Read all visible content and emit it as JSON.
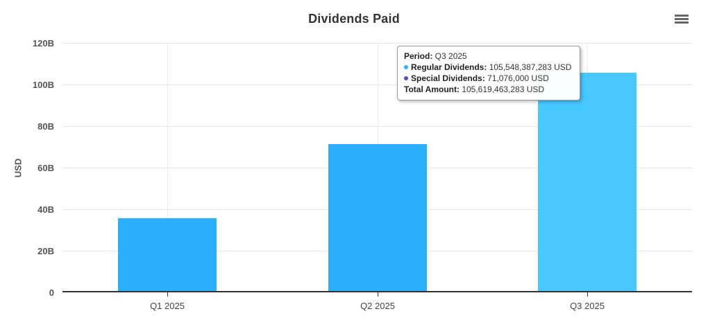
{
  "header": {
    "title": "Dividends Paid"
  },
  "menu": {
    "icon": "hamburger-menu-icon"
  },
  "chart_data": {
    "type": "bar",
    "title": "Dividends Paid",
    "xlabel": "",
    "ylabel": "USD",
    "categories": [
      "Q1 2025",
      "Q2 2025",
      "Q3 2025"
    ],
    "values_billions": [
      35.7,
      71.5,
      105.619463283
    ],
    "series_note": "stacked columns: Regular Dividends + Special Dividends (totals shown)",
    "yticks": {
      "values": [
        0,
        20,
        40,
        60,
        80,
        100,
        120
      ],
      "labels": [
        "0",
        "20B",
        "40B",
        "60B",
        "80B",
        "100B",
        "120B"
      ]
    },
    "ylim": [
      0,
      120
    ],
    "grid": true,
    "legend": "none",
    "hovered_index": 2,
    "colors": {
      "bar": "#2caffe",
      "bar_hover": "#47c8ff",
      "regular_series": "#2caffe",
      "special_series": "#544fc5",
      "axis": "#333333",
      "gridline": "#e6e6e6"
    }
  },
  "tooltip": {
    "rows": [
      {
        "bullet": "",
        "label": "Period:",
        "value": "Q3 2025"
      },
      {
        "bullet": "#2caffe",
        "label": "Regular Dividends:",
        "value": "105,548,387,283 USD"
      },
      {
        "bullet": "#544fc5",
        "label": "Special Dividends:",
        "value": "71,076,000 USD"
      },
      {
        "bullet": "",
        "label": "Total Amount:",
        "value": "105,619,463,283 USD"
      }
    ]
  }
}
